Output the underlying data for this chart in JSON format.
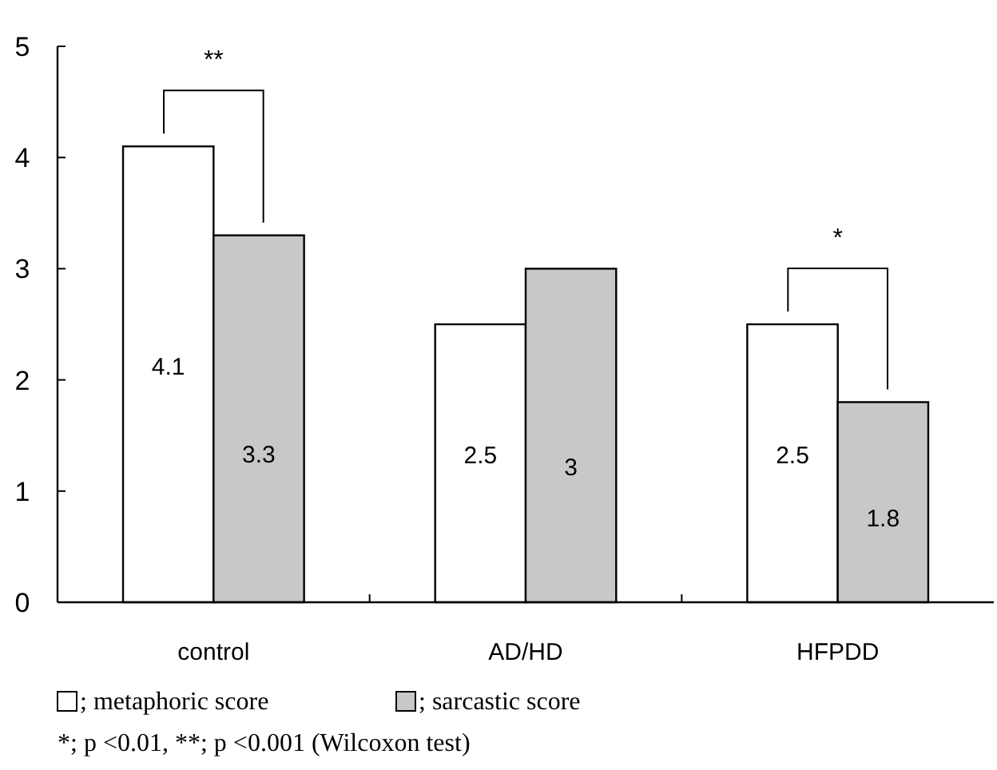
{
  "chart_data": {
    "type": "bar",
    "categories": [
      "control",
      "AD/HD",
      "HFPDD"
    ],
    "series": [
      {
        "name": "; metaphoric score",
        "color": "#ffffff",
        "values": [
          4.1,
          2.5,
          2.5
        ]
      },
      {
        "name": "; sarcastic score",
        "color": "#c8c8c8",
        "values": [
          3.3,
          3,
          1.8
        ]
      }
    ],
    "ylim": [
      0,
      5
    ],
    "yticks": [
      0,
      1,
      2,
      3,
      4,
      5
    ],
    "grid": false,
    "data_labels": true,
    "legend": "bottom left",
    "annotations": [
      "**",
      "*",
      "*; p <0.01, **; p <0.001 (Wilcoxon test)"
    ]
  }
}
